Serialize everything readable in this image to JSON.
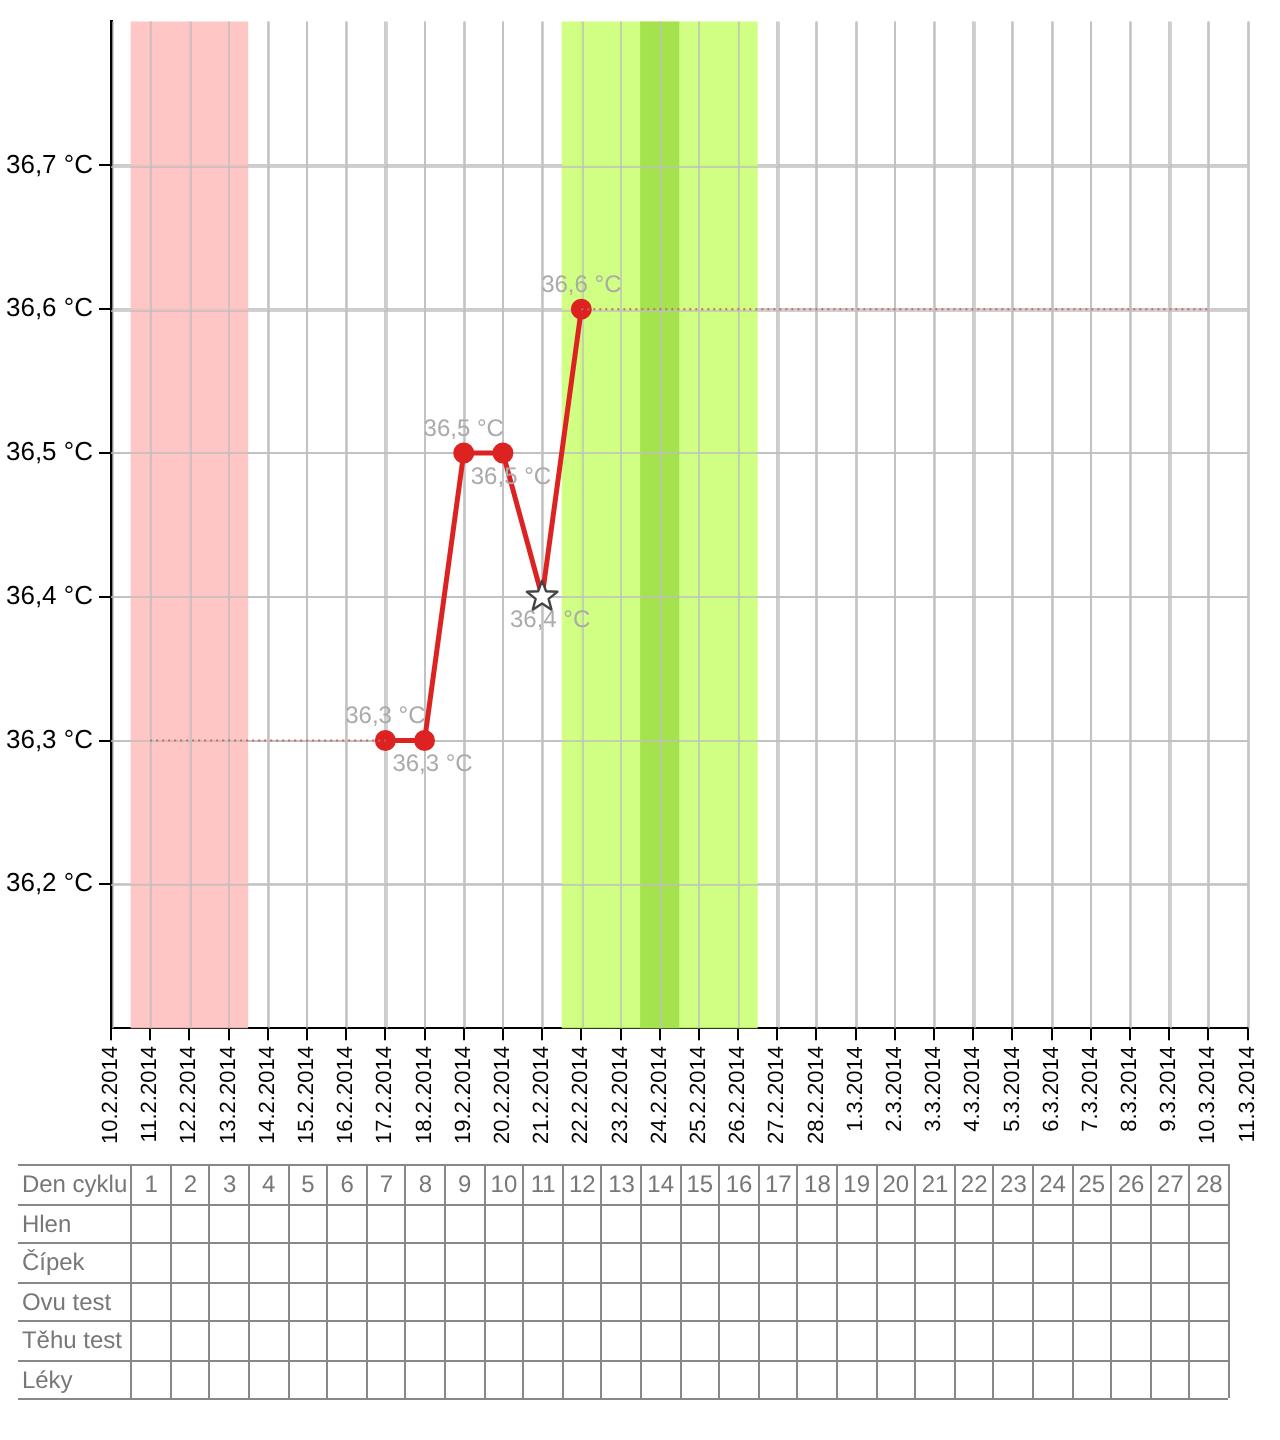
{
  "chart_data": {
    "type": "line",
    "xlim": [
      "2014-02-10",
      "2014-03-11"
    ],
    "xticks": [
      {
        "value": "2014-02-10",
        "label": "10.2.2014"
      },
      {
        "value": "2014-02-11",
        "label": "11.2.2014"
      },
      {
        "value": "2014-02-12",
        "label": "12.2.2014"
      },
      {
        "value": "2014-02-13",
        "label": "13.2.2014"
      },
      {
        "value": "2014-02-14",
        "label": "14.2.2014"
      },
      {
        "value": "2014-02-15",
        "label": "15.2.2014"
      },
      {
        "value": "2014-02-16",
        "label": "16.2.2014"
      },
      {
        "value": "2014-02-17",
        "label": "17.2.2014"
      },
      {
        "value": "2014-02-18",
        "label": "18.2.2014"
      },
      {
        "value": "2014-02-19",
        "label": "19.2.2014"
      },
      {
        "value": "2014-02-20",
        "label": "20.2.2014"
      },
      {
        "value": "2014-02-21",
        "label": "21.2.2014"
      },
      {
        "value": "2014-02-22",
        "label": "22.2.2014"
      },
      {
        "value": "2014-02-23",
        "label": "23.2.2014"
      },
      {
        "value": "2014-02-24",
        "label": "24.2.2014"
      },
      {
        "value": "2014-02-25",
        "label": "25.2.2014"
      },
      {
        "value": "2014-02-26",
        "label": "26.2.2014"
      },
      {
        "value": "2014-02-27",
        "label": "27.2.2014"
      },
      {
        "value": "2014-02-28",
        "label": "28.2.2014"
      },
      {
        "value": "2014-03-01",
        "label": "1.3.2014"
      },
      {
        "value": "2014-03-02",
        "label": "2.3.2014"
      },
      {
        "value": "2014-03-03",
        "label": "3.3.2014"
      },
      {
        "value": "2014-03-04",
        "label": "4.3.2014"
      },
      {
        "value": "2014-03-05",
        "label": "5.3.2014"
      },
      {
        "value": "2014-03-06",
        "label": "6.3.2014"
      },
      {
        "value": "2014-03-07",
        "label": "7.3.2014"
      },
      {
        "value": "2014-03-08",
        "label": "8.3.2014"
      },
      {
        "value": "2014-03-09",
        "label": "9.3.2014"
      },
      {
        "value": "2014-03-10",
        "label": "10.3.2014"
      },
      {
        "value": "2014-03-11",
        "label": "11.3.2014"
      }
    ],
    "ylim": [
      36.1,
      36.8
    ],
    "yticks": [
      {
        "value": 36.2,
        "label": "36,2 °C"
      },
      {
        "value": 36.3,
        "label": "36,3 °C"
      },
      {
        "value": 36.4,
        "label": "36,4 °C"
      },
      {
        "value": 36.5,
        "label": "36,5 °C"
      },
      {
        "value": 36.6,
        "label": "36,6 °C"
      },
      {
        "value": 36.7,
        "label": "36,7 °C"
      }
    ],
    "grid": true,
    "legend": false,
    "x2label": "Den cyklu",
    "x2lim": [
      "2014-02-07T15:00",
      "2014-03-10T12:00"
    ],
    "x2ticks": [
      {
        "value": "2014-02-11",
        "label": "1"
      },
      {
        "value": "2014-02-12",
        "label": "2"
      },
      {
        "value": "2014-02-13",
        "label": "3"
      },
      {
        "value": "2014-02-14",
        "label": "4"
      },
      {
        "value": "2014-02-15",
        "label": "5"
      },
      {
        "value": "2014-02-16",
        "label": "6"
      },
      {
        "value": "2014-02-17",
        "label": "7"
      },
      {
        "value": "2014-02-18",
        "label": "8"
      },
      {
        "value": "2014-02-19",
        "label": "9"
      },
      {
        "value": "2014-02-20",
        "label": "10"
      },
      {
        "value": "2014-02-21",
        "label": "11"
      },
      {
        "value": "2014-02-22",
        "label": "12"
      },
      {
        "value": "2014-02-23",
        "label": "13"
      },
      {
        "value": "2014-02-24",
        "label": "14"
      },
      {
        "value": "2014-02-25",
        "label": "15"
      },
      {
        "value": "2014-02-26",
        "label": "16"
      },
      {
        "value": "2014-02-27",
        "label": "17"
      },
      {
        "value": "2014-02-28",
        "label": "18"
      },
      {
        "value": "2014-03-01",
        "label": "19"
      },
      {
        "value": "2014-03-02",
        "label": "20"
      },
      {
        "value": "2014-03-03",
        "label": "21"
      },
      {
        "value": "2014-03-04",
        "label": "22"
      },
      {
        "value": "2014-03-05",
        "label": "23"
      },
      {
        "value": "2014-03-06",
        "label": "24"
      },
      {
        "value": "2014-03-07",
        "label": "25"
      },
      {
        "value": "2014-03-08",
        "label": "26"
      },
      {
        "value": "2014-03-09",
        "label": "27"
      },
      {
        "value": "2014-03-10",
        "label": "28"
      }
    ],
    "annotations": [
      "Hlen",
      "Čípek",
      "Ovu test",
      "Těhu test",
      "Léky"
    ],
    "bands": [
      {
        "axis": "x",
        "from": "2014-02-10T12:00",
        "to": "2014-02-13T12:00",
        "color": "#ffc0c0"
      },
      {
        "axis": "x",
        "from": "2014-02-21T12:00",
        "to": "2014-02-26T12:00",
        "color": "#ccff77"
      },
      {
        "axis": "x",
        "from": "2014-02-23T12:00",
        "to": "2014-02-24T12:00",
        "color": "#9ee048"
      }
    ],
    "series": [
      {
        "x": [
          "2014-02-11",
          "2014-02-17"
        ],
        "values": [
          36.3,
          36.3
        ],
        "color": "#cc6666",
        "marker": "none",
        "line_style": "dotted"
      },
      {
        "x": [
          "2014-02-22",
          "2014-03-10"
        ],
        "values": [
          36.6,
          36.6
        ],
        "color": "#cc6666",
        "marker": "none",
        "line_style": "dotted"
      },
      {
        "x": [
          "2014-02-17",
          "2014-02-18",
          "2014-02-19",
          "2014-02-20",
          "2014-02-21",
          "2014-02-22"
        ],
        "values": [
          36.3,
          36.3,
          36.5,
          36.5,
          36.4,
          36.6
        ],
        "color": "#dd2222",
        "marker": "circle",
        "line_style": "solid",
        "value_labels": [
          "36,3 °C",
          "36,3 °C",
          "36,5 °C",
          "36,5 °C",
          "36,4 °C",
          "36,6 °C"
        ]
      },
      {
        "type": "scatter",
        "x": [
          "2014-02-21"
        ],
        "values": [
          36.4
        ],
        "color": "#444444",
        "marker": "star"
      }
    ]
  }
}
